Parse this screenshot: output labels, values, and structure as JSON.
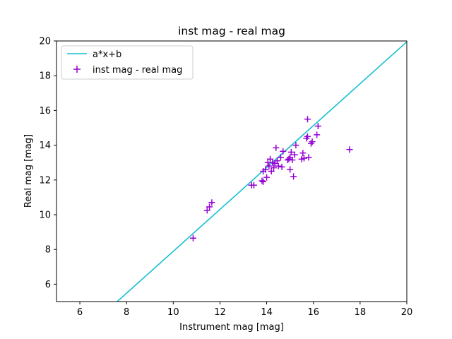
{
  "chart_data": {
    "type": "scatter",
    "title": "inst mag - real mag",
    "xlabel": "Instrument mag [mag]",
    "ylabel": "Real mag [mag]",
    "xlim": [
      5,
      20
    ],
    "ylim": [
      5,
      20
    ],
    "xticks": [
      "6",
      "8",
      "10",
      "12",
      "14",
      "16",
      "18",
      "20"
    ],
    "yticks": [
      "6",
      "8",
      "10",
      "12",
      "14",
      "16",
      "18",
      "20"
    ],
    "grid": false,
    "legend_position": "top-left",
    "series": [
      {
        "name": "a*x+b",
        "kind": "line",
        "color": "#17becf",
        "x": [
          7.6,
          20.0
        ],
        "y": [
          5.0,
          19.95
        ]
      },
      {
        "name": "inst mag - real mag",
        "kind": "scatter",
        "marker": "plus",
        "color": "#9400d3",
        "x": [
          10.85,
          11.45,
          11.55,
          11.65,
          13.35,
          13.45,
          13.8,
          13.85,
          13.85,
          13.95,
          14.0,
          14.05,
          14.1,
          14.15,
          14.2,
          14.25,
          14.3,
          14.35,
          14.4,
          14.45,
          14.5,
          14.6,
          14.65,
          14.7,
          14.9,
          14.95,
          15.0,
          15.0,
          15.05,
          15.1,
          15.15,
          15.2,
          15.25,
          15.5,
          15.55,
          15.6,
          15.7,
          15.75,
          15.75,
          15.8,
          15.9,
          15.95,
          16.15,
          16.2,
          17.55
        ],
        "y": [
          8.65,
          10.25,
          10.45,
          10.7,
          11.7,
          11.7,
          11.95,
          11.9,
          12.5,
          12.6,
          12.15,
          13.0,
          12.8,
          13.2,
          12.5,
          13.0,
          12.7,
          12.95,
          13.85,
          13.1,
          12.8,
          13.3,
          12.75,
          13.65,
          13.15,
          13.2,
          13.3,
          12.6,
          13.6,
          13.15,
          12.2,
          13.45,
          14.0,
          13.2,
          13.55,
          13.25,
          14.4,
          14.5,
          15.5,
          13.3,
          14.1,
          14.2,
          14.6,
          15.1,
          13.75
        ]
      }
    ]
  }
}
